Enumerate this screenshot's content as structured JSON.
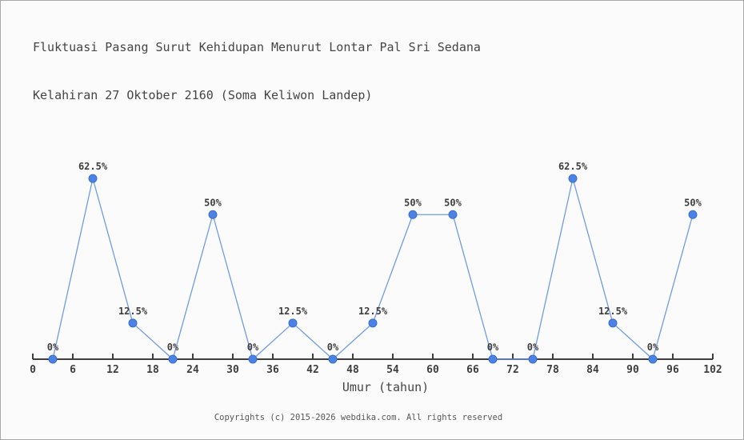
{
  "header": {
    "title_line1": "Fluktuasi Pasang Surut Kehidupan Menurut Lontar Pal Sri Sedana",
    "title_line2": "Kelahiran 27 Oktober 2160 (Soma Keliwon Landep)"
  },
  "chart_data": {
    "type": "line",
    "title": "Fluktuasi Pasang Surut Kehidupan Menurut Lontar Pal Sri Sedana Kelahiran 27 Oktober 2160 (Soma Keliwon Landep)",
    "xlabel": "Umur (tahun)",
    "ylabel": "",
    "x": [
      3,
      9,
      15,
      21,
      27,
      33,
      39,
      45,
      51,
      57,
      63,
      69,
      75,
      81,
      87,
      93,
      99
    ],
    "values": [
      0,
      62.5,
      12.5,
      0,
      50,
      0,
      12.5,
      0,
      12.5,
      50,
      50,
      0,
      0,
      62.5,
      12.5,
      0,
      50
    ],
    "point_labels": [
      "0%",
      "62.5%",
      "12.5%",
      "0%",
      "50%",
      "0%",
      "12.5%",
      "0%",
      "12.5%",
      "50%",
      "50%",
      "0%",
      "0%",
      "62.5%",
      "12.5%",
      "0%",
      "50%"
    ],
    "xticks": [
      0,
      6,
      12,
      18,
      24,
      30,
      36,
      42,
      48,
      54,
      60,
      66,
      72,
      78,
      84,
      90,
      96,
      102
    ],
    "xlim": [
      0,
      102
    ],
    "ylim": [
      0,
      70
    ],
    "grid": false,
    "legend": false,
    "colors": {
      "line": "#6f9ce8",
      "marker_fill": "#4b82e4",
      "marker_stroke": "#3a6fd2",
      "axis": "#3e3e3e",
      "text": "#3e3e3e"
    }
  },
  "footer": {
    "text": "Copyrights (c) 2015-2026 webdika.com. All rights reserved"
  }
}
